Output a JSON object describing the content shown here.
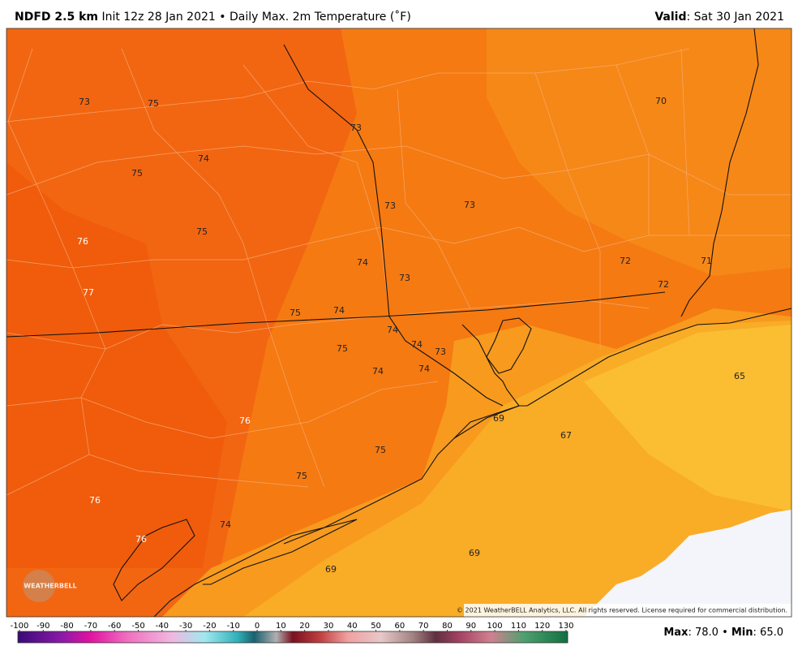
{
  "header": {
    "model": "NDFD 2.5 km",
    "init": "Init 12z 28 Jan 2021",
    "separator": "•",
    "field": "Daily Max. 2m Temperature (˚F)",
    "valid_label": "Valid",
    "valid_date": ": Sat 30 Jan 2021"
  },
  "map": {
    "labels": [
      73,
      75,
      73,
      70,
      74,
      75,
      73,
      73,
      75,
      76,
      74,
      72,
      71,
      73,
      72,
      77,
      75,
      74,
      74,
      74,
      73,
      75,
      74,
      74,
      65,
      69,
      76,
      67,
      75,
      75,
      76,
      74,
      76,
      69,
      69
    ],
    "copyright": "© 2021 WeatherBELL Analytics, LLC. All rights reserved. License required for commercial distribution.",
    "logo": "WEATHERBELL"
  },
  "colorbar": {
    "ticks": [
      -100,
      -90,
      -80,
      -70,
      -60,
      -50,
      -40,
      -30,
      -20,
      -10,
      0,
      10,
      20,
      30,
      40,
      50,
      60,
      70,
      80,
      90,
      100,
      110,
      120,
      130
    ]
  },
  "footer": {
    "max_label": "Max",
    "max_value": ": 78.0",
    "separator": "•",
    "min_label": "Min",
    "min_value": ": 65.0"
  }
}
